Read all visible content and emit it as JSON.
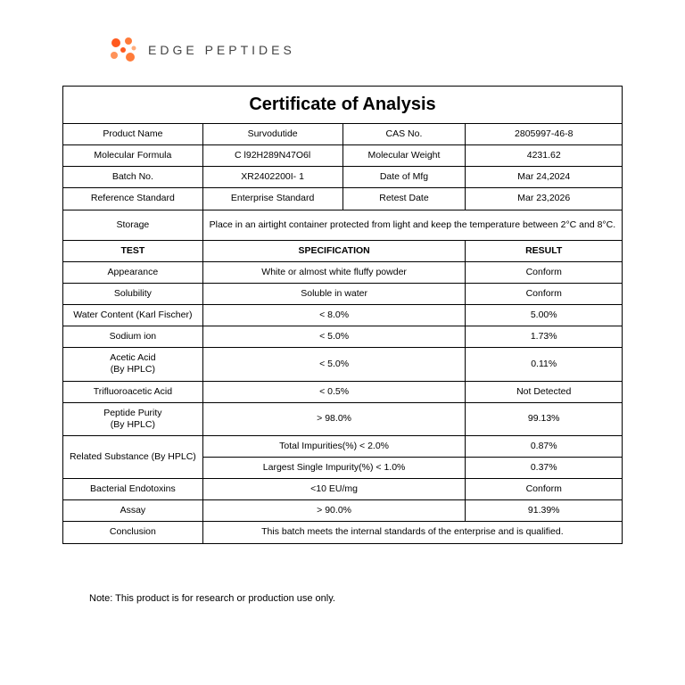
{
  "brand": "EDGE PEPTIDES",
  "logo_colors": [
    "#ff5a1f",
    "#ff7b3a",
    "#ff935a",
    "#ffab7a"
  ],
  "title": "Certificate of Analysis",
  "info": {
    "product_name_label": "Product  Name",
    "product_name": "Survodutide",
    "cas_label": "CAS No.",
    "cas": "2805997-46-8",
    "formula_label": "Molecular Formula",
    "formula": "C l92H289N47O6l",
    "mw_label": "Molecular Weight",
    "mw": "4231.62",
    "batch_label": "Batch No.",
    "batch": "XR2402200I- 1",
    "mfg_label": "Date of Mfg",
    "mfg": "Mar 24,2024",
    "ref_label": "Reference Standard",
    "ref": "Enterprise Standard",
    "retest_label": "Retest Date",
    "retest": "Mar 23,2026",
    "storage_label": "Storage",
    "storage": "Place in an airtight container protected from light and keep the temperature between 2°C and 8°C."
  },
  "headers": {
    "test": "TEST",
    "spec": "SPECIFICATION",
    "result": "RESULT"
  },
  "rows": [
    {
      "test": "Appearance",
      "spec": "White or almost white fluffy powder",
      "result": "Conform"
    },
    {
      "test": "Solubility",
      "spec": "Soluble in water",
      "result": "Conform"
    },
    {
      "test": "Water Content (Karl Fischer)",
      "spec": "< 8.0%",
      "result": "5.00%"
    },
    {
      "test": "Sodium ion",
      "spec": "< 5.0%",
      "result": "1.73%"
    },
    {
      "test": "Acetic Acid\n(By HPLC)",
      "spec": "< 5.0%",
      "result": "0.11%"
    },
    {
      "test": "Trifluoroacetic Acid",
      "spec": "< 0.5%",
      "result": "Not Detected"
    },
    {
      "test": "Peptide Purity\n(By HPLC)",
      "spec": "> 98.0%",
      "result": "99.13%"
    }
  ],
  "related": {
    "label": "Related Substance (By HPLC)",
    "spec1": "Total Impurities(%) < 2.0%",
    "result1": "0.87%",
    "spec2": "Largest Single Impurity(%) < 1.0%",
    "result2": "0.37%"
  },
  "rows2": [
    {
      "test": "Bacterial Endotoxins",
      "spec": "<10  EU/mg",
      "result": "Conform"
    },
    {
      "test": "Assay",
      "spec": "> 90.0%",
      "result": "91.39%"
    }
  ],
  "conclusion_label": "Conclusion",
  "conclusion": "This batch meets the internal standards of the enterprise and is qualified.",
  "note": "Note: This product is for research or production use only."
}
